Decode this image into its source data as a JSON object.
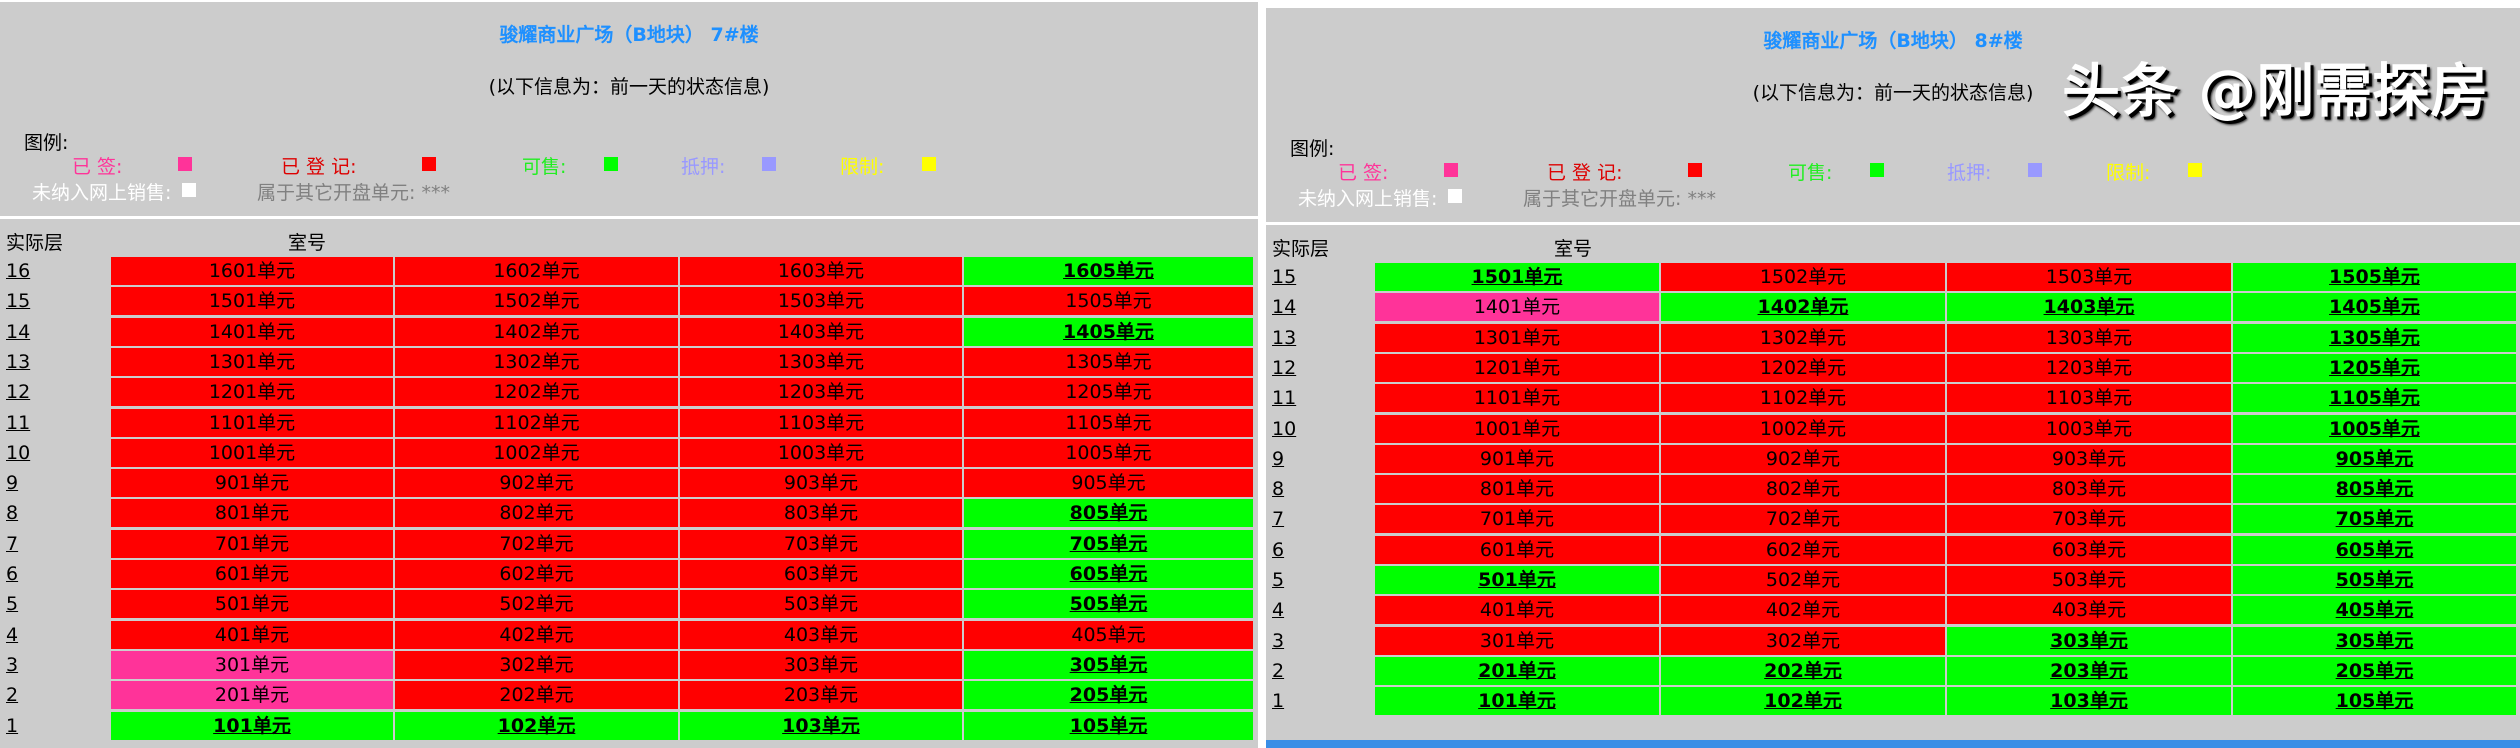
{
  "colors": {
    "signed": "#ff3399",
    "registered": "#ff0000",
    "available": "#00ff00",
    "mortgaged": "#9999ff",
    "restricted": "#ffff00",
    "not_online": "#ffffff",
    "title": "#1e90ff"
  },
  "legend": {
    "label": "图例:",
    "signed": "已 签:",
    "registered": "已 登 记:",
    "available": "可售:",
    "mortgaged": "抵押:",
    "restricted": "限制:",
    "not_online": "未纳入网上销售:",
    "other_batch": "属于其它开盘单元: ***"
  },
  "table_headers": {
    "floor": "实际层",
    "room": "室号"
  },
  "subtitle": "(以下信息为：前一天的状态信息)",
  "watermark": "头条 @刚需探房",
  "buildings": [
    {
      "title": "骏耀商业广场（B地块） 7#楼",
      "rows": [
        {
          "floor": "16",
          "units": [
            [
              "1601单元",
              "r"
            ],
            [
              "1602单元",
              "r"
            ],
            [
              "1603单元",
              "r"
            ],
            [
              "1605单元",
              "a"
            ]
          ]
        },
        {
          "floor": "15",
          "units": [
            [
              "1501单元",
              "r"
            ],
            [
              "1502单元",
              "r"
            ],
            [
              "1503单元",
              "r"
            ],
            [
              "1505单元",
              "r"
            ]
          ]
        },
        {
          "floor": "14",
          "units": [
            [
              "1401单元",
              "r"
            ],
            [
              "1402单元",
              "r"
            ],
            [
              "1403单元",
              "r"
            ],
            [
              "1405单元",
              "a"
            ]
          ]
        },
        {
          "floor": "13",
          "units": [
            [
              "1301单元",
              "r"
            ],
            [
              "1302单元",
              "r"
            ],
            [
              "1303单元",
              "r"
            ],
            [
              "1305单元",
              "r"
            ]
          ]
        },
        {
          "floor": "12",
          "units": [
            [
              "1201单元",
              "r"
            ],
            [
              "1202单元",
              "r"
            ],
            [
              "1203单元",
              "r"
            ],
            [
              "1205单元",
              "r"
            ]
          ]
        },
        {
          "floor": "11",
          "units": [
            [
              "1101单元",
              "r"
            ],
            [
              "1102单元",
              "r"
            ],
            [
              "1103单元",
              "r"
            ],
            [
              "1105单元",
              "r"
            ]
          ]
        },
        {
          "floor": "10",
          "units": [
            [
              "1001单元",
              "r"
            ],
            [
              "1002单元",
              "r"
            ],
            [
              "1003单元",
              "r"
            ],
            [
              "1005单元",
              "r"
            ]
          ]
        },
        {
          "floor": "9",
          "units": [
            [
              "901单元",
              "r"
            ],
            [
              "902单元",
              "r"
            ],
            [
              "903单元",
              "r"
            ],
            [
              "905单元",
              "r"
            ]
          ]
        },
        {
          "floor": "8",
          "units": [
            [
              "801单元",
              "r"
            ],
            [
              "802单元",
              "r"
            ],
            [
              "803单元",
              "r"
            ],
            [
              "805单元",
              "a"
            ]
          ]
        },
        {
          "floor": "7",
          "units": [
            [
              "701单元",
              "r"
            ],
            [
              "702单元",
              "r"
            ],
            [
              "703单元",
              "r"
            ],
            [
              "705单元",
              "a"
            ]
          ]
        },
        {
          "floor": "6",
          "units": [
            [
              "601单元",
              "r"
            ],
            [
              "602单元",
              "r"
            ],
            [
              "603单元",
              "r"
            ],
            [
              "605单元",
              "a"
            ]
          ]
        },
        {
          "floor": "5",
          "units": [
            [
              "501单元",
              "r"
            ],
            [
              "502单元",
              "r"
            ],
            [
              "503单元",
              "r"
            ],
            [
              "505单元",
              "a"
            ]
          ]
        },
        {
          "floor": "4",
          "units": [
            [
              "401单元",
              "r"
            ],
            [
              "402单元",
              "r"
            ],
            [
              "403单元",
              "r"
            ],
            [
              "405单元",
              "r"
            ]
          ]
        },
        {
          "floor": "3",
          "units": [
            [
              "301单元",
              "s"
            ],
            [
              "302单元",
              "r"
            ],
            [
              "303单元",
              "r"
            ],
            [
              "305单元",
              "a"
            ]
          ]
        },
        {
          "floor": "2",
          "units": [
            [
              "201单元",
              "s"
            ],
            [
              "202单元",
              "r"
            ],
            [
              "203单元",
              "r"
            ],
            [
              "205单元",
              "a"
            ]
          ]
        },
        {
          "floor": "1",
          "units": [
            [
              "101单元",
              "a"
            ],
            [
              "102单元",
              "a"
            ],
            [
              "103单元",
              "a"
            ],
            [
              "105单元",
              "a"
            ]
          ]
        }
      ]
    },
    {
      "title": "骏耀商业广场（B地块） 8#楼",
      "rows": [
        {
          "floor": "15",
          "units": [
            [
              "1501单元",
              "a"
            ],
            [
              "1502单元",
              "r"
            ],
            [
              "1503单元",
              "r"
            ],
            [
              "1505单元",
              "a"
            ]
          ]
        },
        {
          "floor": "14",
          "units": [
            [
              "1401单元",
              "s"
            ],
            [
              "1402单元",
              "a"
            ],
            [
              "1403单元",
              "a"
            ],
            [
              "1405单元",
              "a"
            ]
          ]
        },
        {
          "floor": "13",
          "units": [
            [
              "1301单元",
              "r"
            ],
            [
              "1302单元",
              "r"
            ],
            [
              "1303单元",
              "r"
            ],
            [
              "1305单元",
              "a"
            ]
          ]
        },
        {
          "floor": "12",
          "units": [
            [
              "1201单元",
              "r"
            ],
            [
              "1202单元",
              "r"
            ],
            [
              "1203单元",
              "r"
            ],
            [
              "1205单元",
              "a"
            ]
          ]
        },
        {
          "floor": "11",
          "units": [
            [
              "1101单元",
              "r"
            ],
            [
              "1102单元",
              "r"
            ],
            [
              "1103单元",
              "r"
            ],
            [
              "1105单元",
              "a"
            ]
          ]
        },
        {
          "floor": "10",
          "units": [
            [
              "1001单元",
              "r"
            ],
            [
              "1002单元",
              "r"
            ],
            [
              "1003单元",
              "r"
            ],
            [
              "1005单元",
              "a"
            ]
          ]
        },
        {
          "floor": "9",
          "units": [
            [
              "901单元",
              "r"
            ],
            [
              "902单元",
              "r"
            ],
            [
              "903单元",
              "r"
            ],
            [
              "905单元",
              "a"
            ]
          ]
        },
        {
          "floor": "8",
          "units": [
            [
              "801单元",
              "r"
            ],
            [
              "802单元",
              "r"
            ],
            [
              "803单元",
              "r"
            ],
            [
              "805单元",
              "a"
            ]
          ]
        },
        {
          "floor": "7",
          "units": [
            [
              "701单元",
              "r"
            ],
            [
              "702单元",
              "r"
            ],
            [
              "703单元",
              "r"
            ],
            [
              "705单元",
              "a"
            ]
          ]
        },
        {
          "floor": "6",
          "units": [
            [
              "601单元",
              "r"
            ],
            [
              "602单元",
              "r"
            ],
            [
              "603单元",
              "r"
            ],
            [
              "605单元",
              "a"
            ]
          ]
        },
        {
          "floor": "5",
          "units": [
            [
              "501单元",
              "a"
            ],
            [
              "502单元",
              "r"
            ],
            [
              "503单元",
              "r"
            ],
            [
              "505单元",
              "a"
            ]
          ]
        },
        {
          "floor": "4",
          "units": [
            [
              "401单元",
              "r"
            ],
            [
              "402单元",
              "r"
            ],
            [
              "403单元",
              "r"
            ],
            [
              "405单元",
              "a"
            ]
          ]
        },
        {
          "floor": "3",
          "units": [
            [
              "301单元",
              "r"
            ],
            [
              "302单元",
              "r"
            ],
            [
              "303单元",
              "a"
            ],
            [
              "305单元",
              "a"
            ]
          ]
        },
        {
          "floor": "2",
          "units": [
            [
              "201单元",
              "a"
            ],
            [
              "202单元",
              "a"
            ],
            [
              "203单元",
              "a"
            ],
            [
              "205单元",
              "a"
            ]
          ]
        },
        {
          "floor": "1",
          "units": [
            [
              "101单元",
              "a"
            ],
            [
              "102单元",
              "a"
            ],
            [
              "103单元",
              "a"
            ],
            [
              "105单元",
              "a"
            ]
          ]
        }
      ]
    }
  ]
}
